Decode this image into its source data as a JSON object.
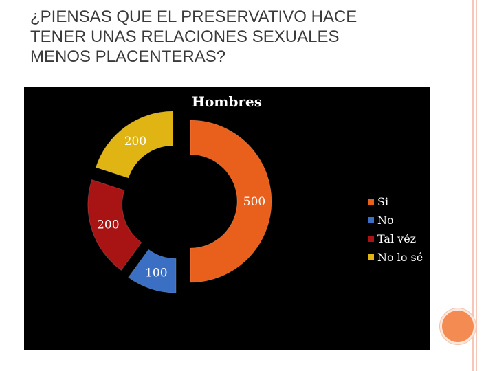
{
  "slide": {
    "title": "¿PIENSAS QUE EL PRESERVATIVO HACE\nTENER UNAS RELACIONES SEXUALES\nMENOS PLACENTERAS?"
  },
  "chart_data": {
    "type": "pie",
    "style": "exploded doughnut",
    "title": "Hombres",
    "legend_position": "right",
    "categories": [
      "Si",
      "No",
      "Tal véz",
      "No lo sé"
    ],
    "values": [
      500,
      100,
      200,
      200
    ],
    "colors": [
      "#e8601c",
      "#3b6fc4",
      "#a81414",
      "#e0b412"
    ],
    "data_labels": [
      "500",
      "100",
      "200",
      "200"
    ]
  }
}
